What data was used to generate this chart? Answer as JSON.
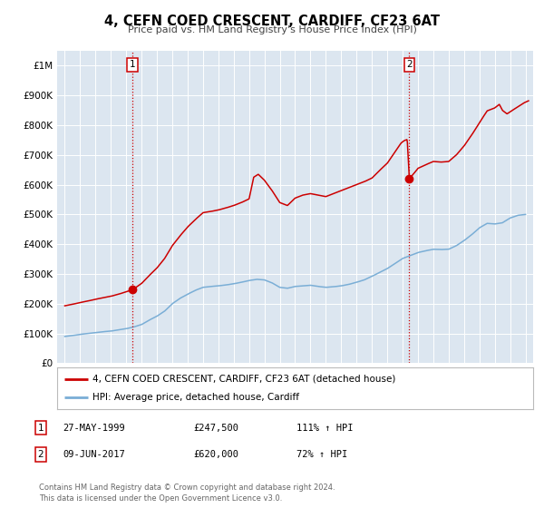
{
  "title": "4, CEFN COED CRESCENT, CARDIFF, CF23 6AT",
  "subtitle": "Price paid vs. HM Land Registry's House Price Index (HPI)",
  "fig_bg_color": "#ffffff",
  "plot_bg_color": "#dce6f0",
  "xlim": [
    1994.5,
    2025.5
  ],
  "ylim": [
    0,
    1050000
  ],
  "yticks": [
    0,
    100000,
    200000,
    300000,
    400000,
    500000,
    600000,
    700000,
    800000,
    900000,
    1000000
  ],
  "ytick_labels": [
    "£0",
    "£100K",
    "£200K",
    "£300K",
    "£400K",
    "£500K",
    "£600K",
    "£700K",
    "£800K",
    "£900K",
    "£1M"
  ],
  "xticks": [
    1995,
    1996,
    1997,
    1998,
    1999,
    2000,
    2001,
    2002,
    2003,
    2004,
    2005,
    2006,
    2007,
    2008,
    2009,
    2010,
    2011,
    2012,
    2013,
    2014,
    2015,
    2016,
    2017,
    2018,
    2019,
    2020,
    2021,
    2022,
    2023,
    2024,
    2025
  ],
  "property_color": "#cc0000",
  "hpi_color": "#7aaed6",
  "sale1_x": 1999.41,
  "sale1_y": 247500,
  "sale2_x": 2017.44,
  "sale2_y": 620000,
  "legend_property_label": "4, CEFN COED CRESCENT, CARDIFF, CF23 6AT (detached house)",
  "legend_hpi_label": "HPI: Average price, detached house, Cardiff",
  "note1_label": "1",
  "note1_date": "27-MAY-1999",
  "note1_price": "£247,500",
  "note1_hpi": "111% ↑ HPI",
  "note2_label": "2",
  "note2_date": "09-JUN-2017",
  "note2_price": "£620,000",
  "note2_hpi": "72% ↑ HPI",
  "footer": "Contains HM Land Registry data © Crown copyright and database right 2024.\nThis data is licensed under the Open Government Licence v3.0."
}
